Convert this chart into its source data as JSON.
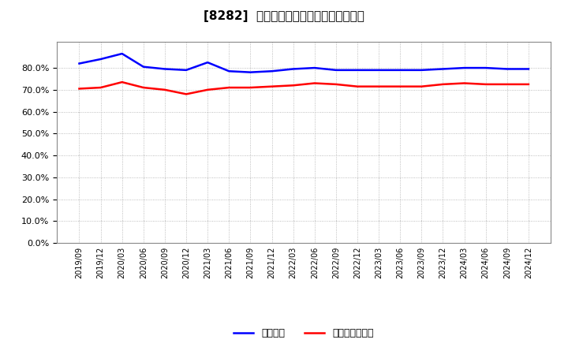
{
  "title": "[8282]  固定比率、固定長期適合率の推移",
  "x_labels": [
    "2019/09",
    "2019/12",
    "2020/03",
    "2020/06",
    "2020/09",
    "2020/12",
    "2021/03",
    "2021/06",
    "2021/09",
    "2021/12",
    "2022/03",
    "2022/06",
    "2022/09",
    "2022/12",
    "2023/03",
    "2023/06",
    "2023/09",
    "2023/12",
    "2024/03",
    "2024/06",
    "2024/09",
    "2024/12"
  ],
  "fixed_ratio": [
    82.0,
    84.0,
    86.5,
    80.5,
    79.5,
    79.0,
    82.5,
    78.5,
    78.0,
    78.5,
    79.5,
    80.0,
    79.0,
    79.0,
    79.0,
    79.0,
    79.0,
    79.5,
    80.0,
    80.0,
    79.5,
    79.5
  ],
  "fixed_long_ratio": [
    70.5,
    71.0,
    73.5,
    71.0,
    70.0,
    68.0,
    70.0,
    71.0,
    71.0,
    71.5,
    72.0,
    73.0,
    72.5,
    71.5,
    71.5,
    71.5,
    71.5,
    72.5,
    73.0,
    72.5,
    72.5,
    72.5
  ],
  "blue_color": "#0000FF",
  "red_color": "#FF0000",
  "background_color": "#FFFFFF",
  "grid_color": "#AAAAAA",
  "yticks": [
    0.0,
    10.0,
    20.0,
    30.0,
    40.0,
    50.0,
    60.0,
    70.0,
    80.0
  ],
  "legend_fixed": "固定比率",
  "legend_fixed_long": "固定長期適合率"
}
